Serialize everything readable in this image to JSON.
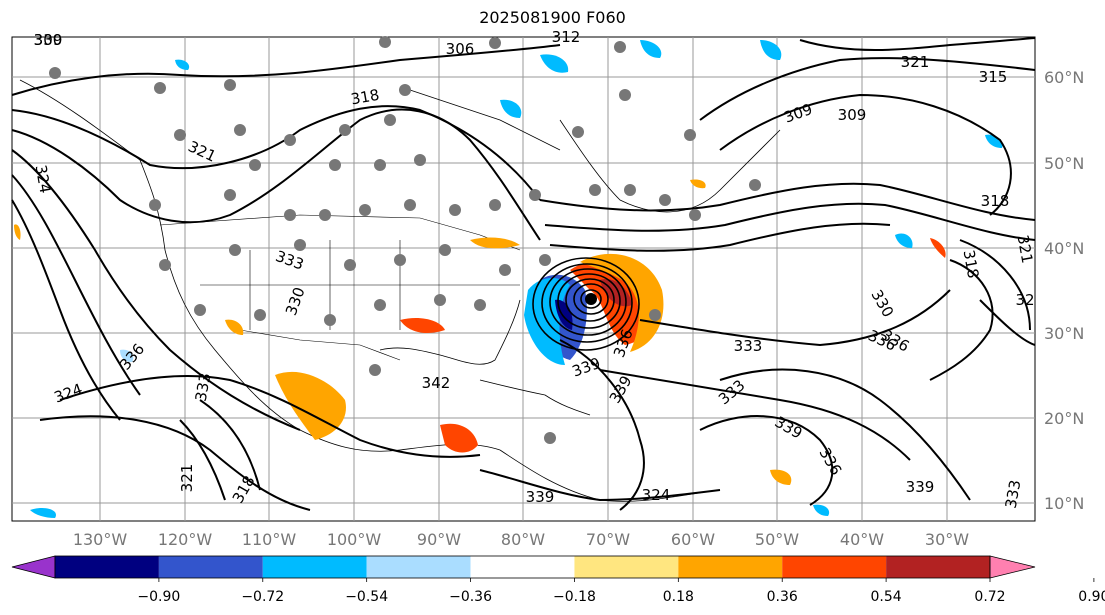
{
  "title": "2025081900 F060",
  "map": {
    "lon_ticks": [
      "130°W",
      "120°W",
      "110°W",
      "100°W",
      "90°W",
      "80°W",
      "70°W",
      "60°W",
      "50°W",
      "40°W",
      "30°W"
    ],
    "lat_ticks": [
      "60°N",
      "50°N",
      "40°N",
      "30°N",
      "20°N",
      "10°N"
    ],
    "contour_labels": [
      "309",
      "306",
      "312",
      "318",
      "321",
      "315",
      "309",
      "309",
      "321",
      "324",
      "318",
      "321",
      "32",
      "318",
      "330",
      "333",
      "336",
      "339",
      "336",
      "333",
      "330",
      "333",
      "342",
      "339",
      "336",
      "324",
      "321",
      "318",
      "333",
      "339",
      "339",
      "324",
      "339",
      "336",
      "333",
      "336",
      "330"
    ]
  },
  "colorbar": {
    "tick_labels": [
      "−0.90",
      "−0.72",
      "−0.54",
      "−0.36",
      "−0.18",
      "0.18",
      "0.36",
      "0.54",
      "0.72",
      "0.90"
    ],
    "colors": [
      "#9933cc",
      "#000080",
      "#3355cc",
      "#00bbff",
      "#aaddff",
      "#ffffff",
      "#ffe680",
      "#ffa500",
      "#ff4500",
      "#b22222",
      "#ff80b0"
    ]
  }
}
